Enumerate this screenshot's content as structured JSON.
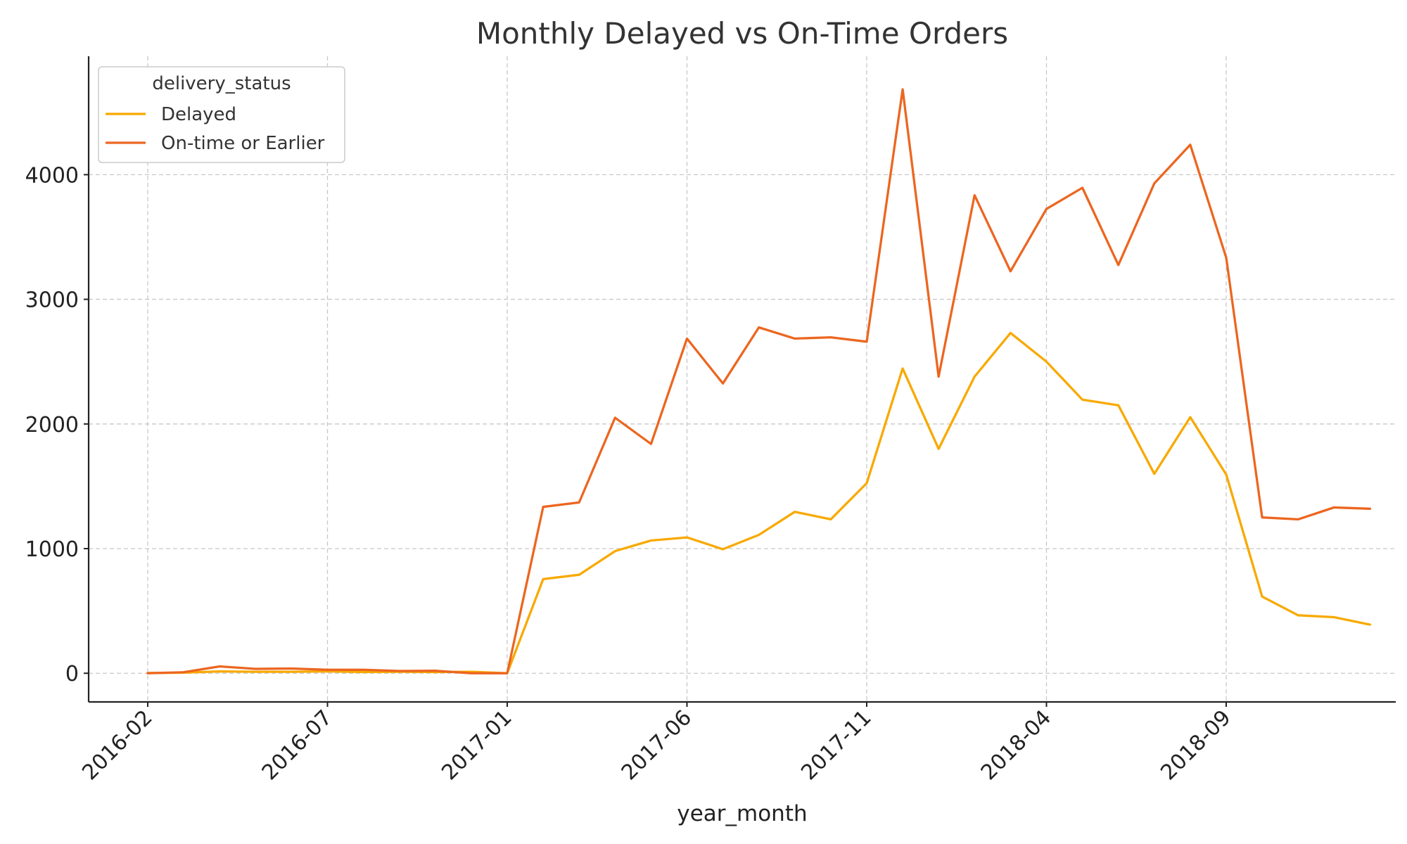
{
  "chart_data": {
    "type": "line",
    "title": "Monthly Delayed vs On-Time Orders",
    "xlabel": "year_month",
    "ylabel": "",
    "ylim": [
      -230,
      4950
    ],
    "yticks": [
      0,
      1000,
      2000,
      3000,
      4000
    ],
    "ytick_labels": [
      "0",
      "1000",
      "2000",
      "3000",
      "4000"
    ],
    "xtick_labels": [
      "2016-02",
      "2016-07",
      "2017-01",
      "2017-06",
      "2017-11",
      "2018-04",
      "2018-09"
    ],
    "grid": true,
    "legend": {
      "title": "delivery_status",
      "placement": "top-left"
    },
    "series": [
      {
        "name": "Delayed",
        "color": "#F8A900",
        "values": [
          2,
          5,
          15,
          12,
          12,
          15,
          10,
          12,
          10,
          12,
          0,
          755,
          790,
          980,
          1065,
          1090,
          995,
          1110,
          1295,
          1235,
          1525,
          2445,
          1800,
          2380,
          2730,
          2500,
          2195,
          2150,
          1600,
          2055,
          1595,
          615,
          465,
          450,
          390
        ]
      },
      {
        "name": "On-time or Earlier",
        "color": "#EC6620",
        "values": [
          0,
          8,
          55,
          35,
          38,
          28,
          28,
          18,
          20,
          0,
          0,
          1335,
          1370,
          2050,
          1840,
          2685,
          2325,
          2775,
          2685,
          2695,
          2660,
          4685,
          2380,
          3835,
          3225,
          3725,
          3895,
          3275,
          3930,
          4240,
          3335,
          1250,
          1235,
          1330,
          1320
        ]
      }
    ]
  }
}
